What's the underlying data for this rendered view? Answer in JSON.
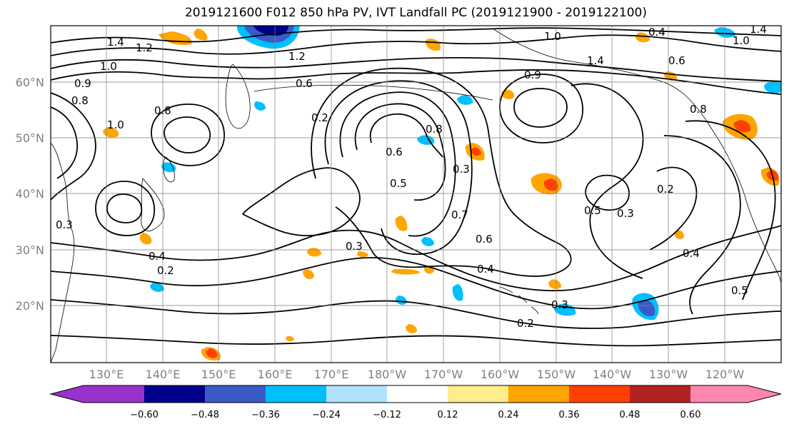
{
  "title": "2019121600 F012 850 hPa PV, IVT Landfall PC (2019121900 - 2019122100)",
  "map": {
    "lon_labels": [
      "130°E",
      "140°E",
      "150°E",
      "160°E",
      "170°E",
      "180°W",
      "170°W",
      "160°W",
      "150°W",
      "140°W",
      "130°W",
      "120°W"
    ],
    "lat_labels": [
      "60°N",
      "50°N",
      "40°N",
      "30°N",
      "20°N"
    ],
    "contour_labels": [
      "1.4",
      "1.2",
      "1.0",
      "0.9",
      "0.8",
      "0.6",
      "1.0",
      "1.4",
      "1.2",
      "1.4",
      "1.0",
      "0.8",
      "1.0",
      "0.9",
      "0.8",
      "0.6",
      "0.8",
      "0.4",
      "0.6",
      "0.5",
      "0.3",
      "0.2",
      "0.6",
      "0.7",
      "0.5",
      "0.4",
      "0.3",
      "0.3",
      "0.2",
      "0.3",
      "0.2",
      "0.4",
      "0.5",
      "0.2",
      "0.4",
      "0.3"
    ],
    "colors": {
      "land": "#ffffff",
      "contour": "#000000",
      "grid": "#808080"
    }
  },
  "colorbar": {
    "ticks": [
      "−0.60",
      "−0.48",
      "−0.36",
      "−0.24",
      "−0.12",
      "0.12",
      "0.24",
      "0.36",
      "0.48",
      "0.60"
    ],
    "colors": [
      "#9932cc",
      "#00008b",
      "#3a5bc7",
      "#00bfff",
      "#b0e2ff",
      "#ffffff",
      "#ffec8b",
      "#ffa500",
      "#ff4000",
      "#b22222",
      "#ff86b0"
    ]
  }
}
